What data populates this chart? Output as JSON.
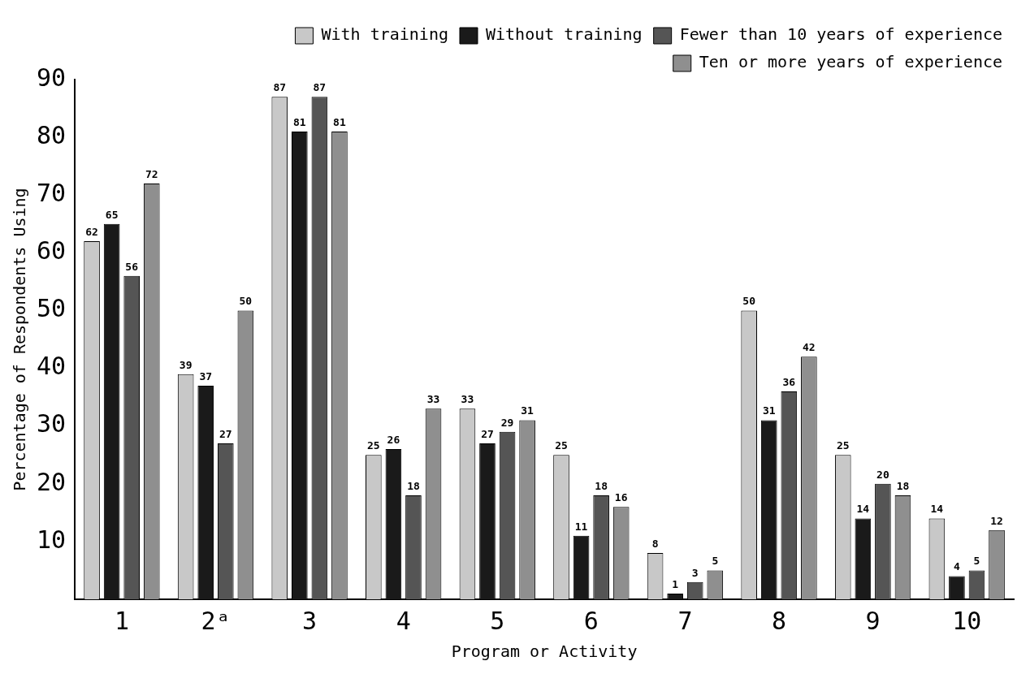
{
  "chart_data": {
    "type": "bar",
    "xlabel": "Program or Activity",
    "ylabel": "Percentage of Respondents Using",
    "categories": [
      "1",
      "2ᵃ",
      "3",
      "4",
      "5",
      "6",
      "7",
      "8",
      "9",
      "10"
    ],
    "series": [
      {
        "name": "With training",
        "color": "#c8c8c8",
        "values": [
          62,
          39,
          87,
          25,
          33,
          25,
          8,
          50,
          25,
          14
        ]
      },
      {
        "name": "Without training",
        "color": "#1a1a1a",
        "values": [
          65,
          37,
          81,
          26,
          27,
          11,
          1,
          31,
          14,
          4
        ]
      },
      {
        "name": "Fewer than 10 years of experience",
        "color": "#555555",
        "values": [
          56,
          27,
          87,
          18,
          29,
          18,
          3,
          36,
          20,
          5
        ]
      },
      {
        "name": "Ten or more years of experience",
        "color": "#8f8f8f",
        "values": [
          72,
          50,
          81,
          33,
          31,
          16,
          5,
          42,
          18,
          12
        ]
      }
    ],
    "ylim": [
      0,
      90
    ],
    "yticks": [
      10,
      20,
      30,
      40,
      50,
      60,
      70,
      80,
      90
    ],
    "grid": false,
    "legend": "top right",
    "data_labels": true
  }
}
